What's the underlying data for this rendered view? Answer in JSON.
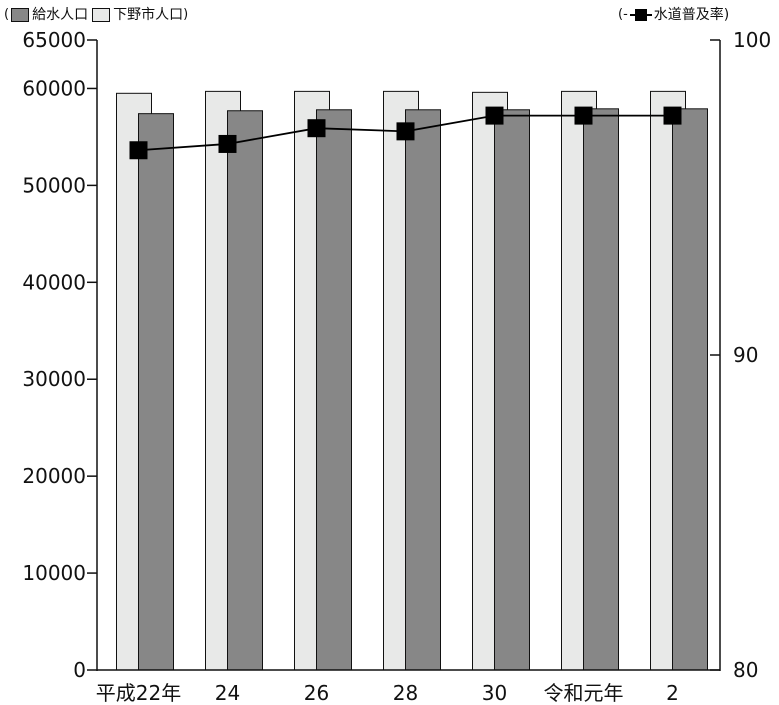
{
  "legend": {
    "open_paren": "(",
    "close_paren": ")",
    "supplied_label": "給水人口",
    "city_label": "下野市人口",
    "rate_open": "(-",
    "rate_label": "水道普及率)"
  },
  "chart_data": {
    "type": "bar",
    "categories": [
      "平成22年",
      "24",
      "26",
      "28",
      "30",
      "令和元年",
      "2"
    ],
    "series": [
      {
        "name": "下野市人口",
        "kind": "bar",
        "axis": "left",
        "color": "#e8e9e8",
        "values": [
          59500,
          59700,
          59700,
          59700,
          59600,
          59700,
          59700
        ]
      },
      {
        "name": "給水人口",
        "kind": "bar",
        "axis": "left",
        "color": "#878787",
        "values": [
          57400,
          57700,
          57800,
          57800,
          57800,
          57900,
          57900
        ]
      },
      {
        "name": "水道普及率",
        "kind": "line",
        "axis": "right",
        "color": "#000000",
        "values": [
          96.5,
          96.7,
          97.2,
          97.1,
          97.6,
          97.6,
          97.6
        ]
      }
    ],
    "y_left": {
      "ylim": [
        0,
        65000
      ],
      "ticks": [
        "0",
        "10000",
        "20000",
        "30000",
        "40000",
        "50000",
        "60000",
        "65000"
      ]
    },
    "y_right": {
      "ylim": [
        80,
        100
      ],
      "ticks": [
        "80",
        "90",
        "100"
      ]
    },
    "grid": false,
    "legend_position": "top"
  }
}
